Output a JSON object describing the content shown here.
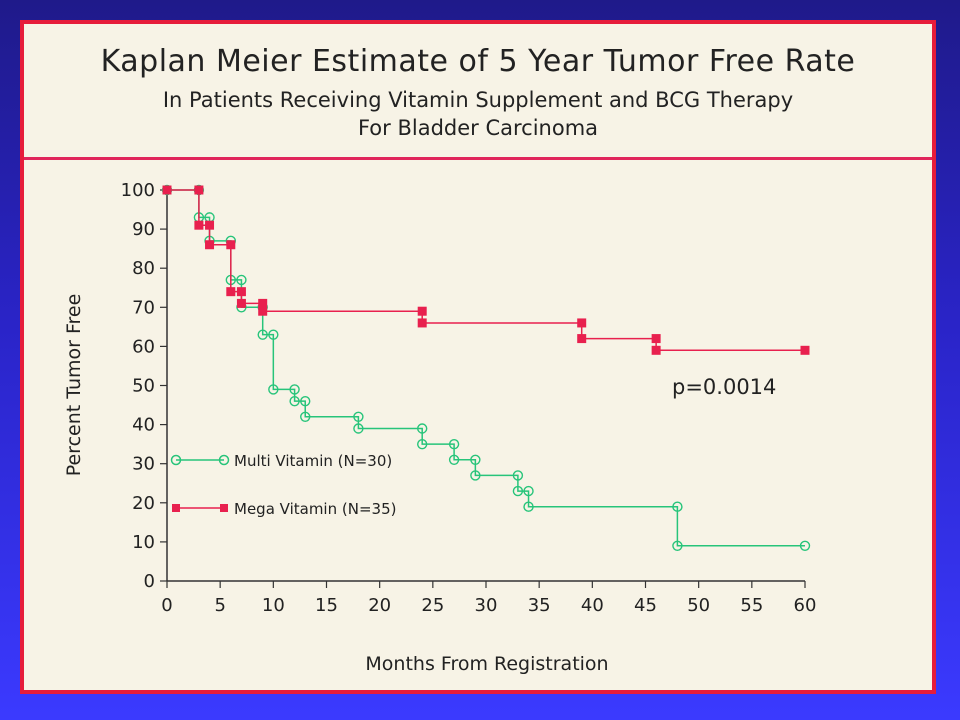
{
  "title": {
    "line1": "Kaplan Meier Estimate of 5 Year Tumor Free Rate",
    "line2": "In Patients Receiving Vitamin Supplement and BCG Therapy",
    "line3": "For Bladder Carcinoma"
  },
  "colors": {
    "multi": "#27c47a",
    "mega": "#e8204e",
    "frame": "#e61c3a"
  },
  "chart_data": {
    "type": "line",
    "step": true,
    "xlabel": "Months From Registration",
    "ylabel": "Percent Tumor Free",
    "xlim": [
      0,
      60
    ],
    "ylim": [
      0,
      100
    ],
    "xticks": [
      0,
      5,
      10,
      15,
      20,
      25,
      30,
      35,
      40,
      45,
      50,
      55,
      60
    ],
    "yticks": [
      0,
      10,
      20,
      30,
      40,
      50,
      60,
      70,
      80,
      90,
      100
    ],
    "annotation": "p=0.0014",
    "legend_position": "lower-left",
    "series": [
      {
        "name": "Multi Vitamin (N=30)",
        "marker": "open-circle",
        "points": [
          [
            0,
            100
          ],
          [
            3,
            100
          ],
          [
            3,
            93
          ],
          [
            4,
            93
          ],
          [
            4,
            87
          ],
          [
            6,
            87
          ],
          [
            6,
            77
          ],
          [
            7,
            77
          ],
          [
            7,
            70
          ],
          [
            9,
            70
          ],
          [
            9,
            63
          ],
          [
            10,
            63
          ],
          [
            10,
            49
          ],
          [
            12,
            49
          ],
          [
            12,
            46
          ],
          [
            13,
            46
          ],
          [
            13,
            42
          ],
          [
            18,
            42
          ],
          [
            18,
            39
          ],
          [
            24,
            39
          ],
          [
            24,
            35
          ],
          [
            27,
            35
          ],
          [
            27,
            31
          ],
          [
            29,
            31
          ],
          [
            29,
            27
          ],
          [
            33,
            27
          ],
          [
            33,
            23
          ],
          [
            34,
            23
          ],
          [
            34,
            19
          ],
          [
            48,
            19
          ],
          [
            48,
            9
          ],
          [
            60,
            9
          ]
        ]
      },
      {
        "name": "Mega Vitamin (N=35)",
        "marker": "filled-square",
        "points": [
          [
            0,
            100
          ],
          [
            3,
            100
          ],
          [
            3,
            91
          ],
          [
            4,
            91
          ],
          [
            4,
            86
          ],
          [
            6,
            86
          ],
          [
            6,
            74
          ],
          [
            7,
            74
          ],
          [
            7,
            71
          ],
          [
            9,
            71
          ],
          [
            9,
            69
          ],
          [
            24,
            69
          ],
          [
            24,
            66
          ],
          [
            39,
            66
          ],
          [
            39,
            62
          ],
          [
            46,
            62
          ],
          [
            46,
            59
          ],
          [
            60,
            59
          ]
        ]
      }
    ]
  }
}
